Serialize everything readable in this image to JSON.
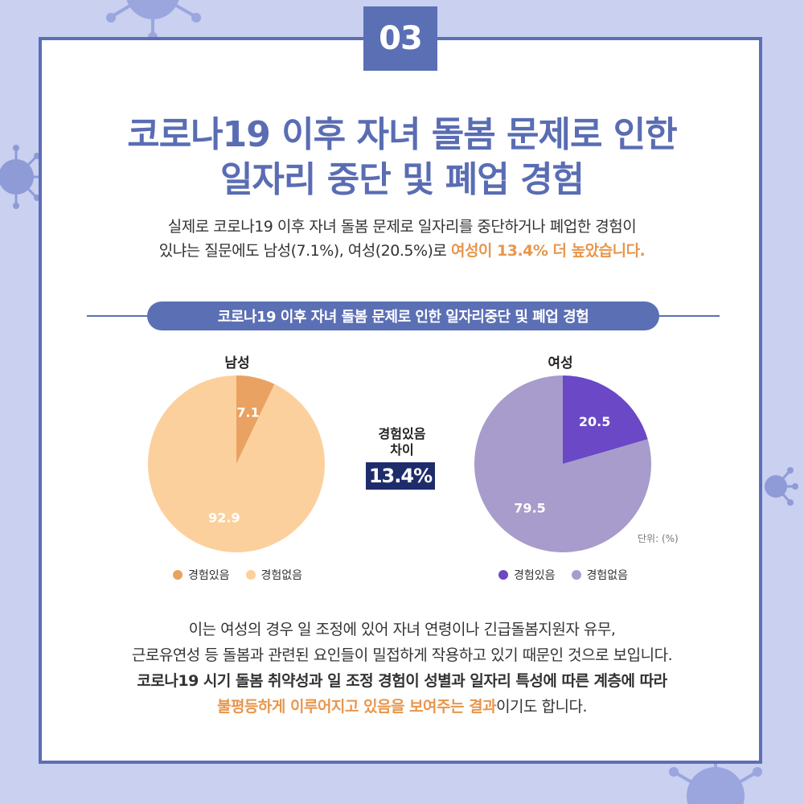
{
  "badge": "03",
  "title": {
    "line1": "코로나19 이후 자녀 돌봄 문제로 인한",
    "line2": "일자리 중단 및 폐업 경험"
  },
  "intro": {
    "line1": "실제로 코로나19 이후 자녀 돌봄 문제로 일자리를 중단하거나 폐업한 경험이",
    "line2_plain": "있냐는 질문에도 남성(7.1%), 여성(20.5%)로 ",
    "line2_highlight": "여성이 13.4% 더 높았습니다."
  },
  "section_title": "코로나19 이후 자녀 돌봄 문제로 인한 일자리중단 및 폐업 경험",
  "difference": {
    "label_line1": "경험있음",
    "label_line2": "차이",
    "value": "13.4%"
  },
  "unit_label": "단위: (%)",
  "colors": {
    "accent": "#5b6fb5",
    "highlight": "#e8964c",
    "male_yes": "#e9a262",
    "male_no": "#fcd09d",
    "female_yes": "#6a48c6",
    "female_no": "#a79ccb",
    "diff_box": "#1f2c6b"
  },
  "chart_data": [
    {
      "type": "pie",
      "title": "남성",
      "categories": [
        "경험있음",
        "경험없음"
      ],
      "values": [
        7.1,
        92.9
      ],
      "colors": [
        "#e9a262",
        "#fcd09d"
      ],
      "legend": "bottom"
    },
    {
      "type": "pie",
      "title": "여성",
      "categories": [
        "경험있음",
        "경험없음"
      ],
      "values": [
        20.5,
        79.5
      ],
      "colors": [
        "#6a48c6",
        "#a79ccb"
      ],
      "legend": "bottom"
    }
  ],
  "bottom_text": {
    "line1": "이는 여성의 경우 일 조정에 있어 자녀 연령이나 긴급돌봄지원자 유무,",
    "line2": "근로유연성 등 돌봄과 관련된 요인들이 밀접하게 작용하고 있기 때문인 것으로 보입니다.",
    "line3_highlight": "코로나19 시기 돌봄 취약성과 일 조정 경험이 성별과 일자리 특성에 따른 계층에 따라",
    "line4_highlight": "불평등하게 이루어지고 있음을 보여주는 결과",
    "line4_plain": "이기도 합니다."
  }
}
